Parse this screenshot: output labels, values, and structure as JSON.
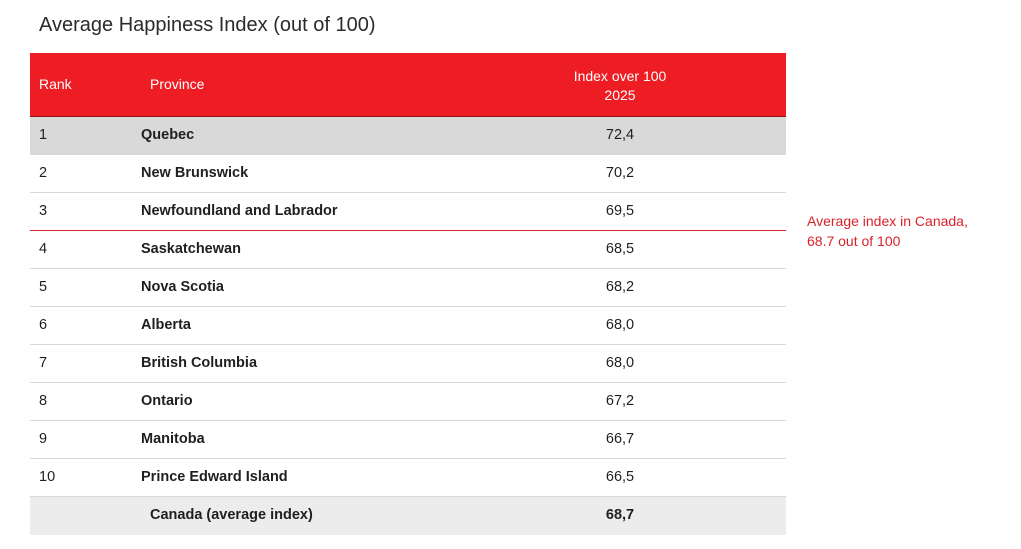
{
  "chart_data": {
    "type": "table",
    "title": "Average Happiness Index (out of 100)",
    "columns": {
      "rank": "Rank",
      "province": "Province",
      "index_line1": "Index over 100",
      "index_line2": "2025"
    },
    "rows": [
      {
        "rank": "1",
        "province": "Quebec",
        "value": "72,4"
      },
      {
        "rank": "2",
        "province": "New Brunswick",
        "value": "70,2"
      },
      {
        "rank": "3",
        "province": "Newfoundland and Labrador",
        "value": "69,5"
      },
      {
        "rank": "4",
        "province": "Saskatchewan",
        "value": "68,5"
      },
      {
        "rank": "5",
        "province": "Nova Scotia",
        "value": "68,2"
      },
      {
        "rank": "6",
        "province": "Alberta",
        "value": "68,0"
      },
      {
        "rank": "7",
        "province": "British Columbia",
        "value": "68,0"
      },
      {
        "rank": "8",
        "province": "Ontario",
        "value": "67,2"
      },
      {
        "rank": "9",
        "province": "Manitoba",
        "value": "66,7"
      },
      {
        "rank": "10",
        "province": "Prince Edward Island",
        "value": "66,5"
      }
    ],
    "total": {
      "province": "Canada (average index)",
      "value": "68,7"
    },
    "annotation": {
      "line1": "Average index in Canada,",
      "line2": "68.7 out of 100",
      "average_value": 68.7
    },
    "colors": {
      "header": "#ee1d24",
      "highlight_row": "#d9d9d9",
      "total_row": "#ececec",
      "annotation": "#d9232a"
    }
  }
}
